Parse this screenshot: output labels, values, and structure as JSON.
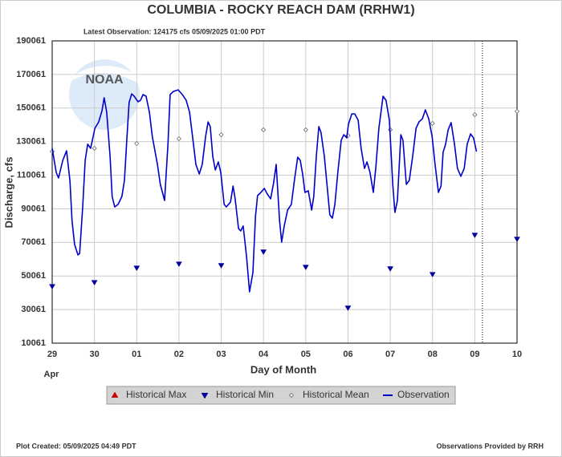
{
  "chart_data": {
    "type": "line",
    "title": "COLUMBIA - ROCKY REACH DAM  (RRHW1)",
    "subtitle": "Latest Observation: 124175 cfs 05/09/2025 01:00 PDT",
    "y_label": "Discharge, cfs",
    "x_label": "Day of Month",
    "month_label": "Apr",
    "watermark": "NOAA",
    "footer_left": "Plot Created: 05/09/2025 04:49 PDT",
    "footer_right": "Observations Provided by RRH",
    "xlim": [
      0,
      11
    ],
    "xticks": [
      {
        "value": 0,
        "label": "29"
      },
      {
        "value": 1,
        "label": "30"
      },
      {
        "value": 2,
        "label": "01"
      },
      {
        "value": 3,
        "label": "02"
      },
      {
        "value": 4,
        "label": "03"
      },
      {
        "value": 5,
        "label": "04"
      },
      {
        "value": 6,
        "label": "05"
      },
      {
        "value": 7,
        "label": "06"
      },
      {
        "value": 8,
        "label": "07"
      },
      {
        "value": 9,
        "label": "08"
      },
      {
        "value": 10,
        "label": "09"
      },
      {
        "value": 11,
        "label": "10"
      }
    ],
    "ylim": [
      10061,
      190061
    ],
    "yticks": [
      10061,
      30061,
      50061,
      70061,
      90061,
      110061,
      130061,
      150061,
      170061,
      190061
    ],
    "grid": true,
    "legend": "bottom",
    "now_x": 10.18,
    "series": [
      {
        "name": "Historical Max",
        "color": "#cc0000",
        "marker": "triangle-up",
        "x": [],
        "values": []
      },
      {
        "name": "Historical Min",
        "color": "#00009c",
        "marker": "triangle-down",
        "x": [
          0,
          1,
          2,
          3,
          4,
          5,
          6,
          7,
          8,
          9,
          10,
          11
        ],
        "values": [
          43900,
          46300,
          54900,
          57300,
          56400,
          64500,
          55400,
          31100,
          54500,
          51100,
          74500,
          72100
        ]
      },
      {
        "name": "Historical Mean",
        "color": "#666666",
        "marker": "diamond",
        "x": [
          0,
          1,
          2,
          3,
          4,
          5,
          6,
          7,
          8,
          9,
          10,
          11
        ],
        "values": [
          124200,
          126100,
          128900,
          131800,
          134200,
          137100,
          137100,
          133700,
          137100,
          140900,
          146100,
          148100
        ]
      },
      {
        "name": "Observation",
        "color": "#0000cc",
        "marker": "line",
        "x": [
          0,
          0.095,
          0.15,
          0.25,
          0.34,
          0.42,
          0.47,
          0.53,
          0.61,
          0.65,
          0.72,
          0.78,
          0.84,
          0.91,
          1.01,
          1.1,
          1.18,
          1.23,
          1.29,
          1.37,
          1.42,
          1.48,
          1.56,
          1.65,
          1.71,
          1.77,
          1.82,
          1.88,
          1.94,
          2.03,
          2.09,
          2.15,
          2.22,
          2.3,
          2.37,
          2.49,
          2.56,
          2.66,
          2.74,
          2.79,
          2.87,
          2.98,
          3.08,
          3.17,
          3.25,
          3.32,
          3.4,
          3.48,
          3.55,
          3.63,
          3.69,
          3.74,
          3.8,
          3.86,
          3.93,
          3.99,
          4.07,
          4.12,
          4.22,
          4.28,
          4.33,
          4.41,
          4.46,
          4.52,
          4.6,
          4.67,
          4.75,
          4.81,
          4.86,
          4.94,
          5.02,
          5.09,
          5.17,
          5.24,
          5.3,
          5.38,
          5.43,
          5.49,
          5.57,
          5.66,
          5.74,
          5.81,
          5.87,
          5.93,
          5.98,
          6.06,
          6.14,
          6.19,
          6.25,
          6.31,
          6.36,
          6.44,
          6.52,
          6.57,
          6.63,
          6.69,
          6.76,
          6.84,
          6.9,
          6.97,
          7.01,
          7.09,
          7.16,
          7.24,
          7.31,
          7.39,
          7.45,
          7.52,
          7.6,
          7.66,
          7.73,
          7.83,
          7.9,
          7.98,
          8.06,
          8.11,
          8.17,
          8.25,
          8.3,
          8.38,
          8.45,
          8.53,
          8.61,
          8.68,
          8.76,
          8.83,
          8.91,
          8.99,
          9.06,
          9.14,
          9.2,
          9.25,
          9.31,
          9.37,
          9.44,
          9.52,
          9.59,
          9.67,
          9.75,
          9.82,
          9.9,
          9.97,
          10.04
        ],
        "values": [
          126100,
          111800,
          108400,
          118900,
          124600,
          107000,
          83100,
          68800,
          62600,
          63500,
          90300,
          118900,
          128500,
          126100,
          138000,
          141800,
          148500,
          156200,
          147600,
          121300,
          97400,
          91200,
          92700,
          97400,
          107000,
          133200,
          153300,
          158500,
          157100,
          153800,
          154700,
          158100,
          157100,
          147600,
          133200,
          116500,
          104600,
          95000,
          128500,
          158100,
          160000,
          160900,
          158100,
          154700,
          147600,
          133200,
          116500,
          110800,
          116500,
          133200,
          141800,
          139000,
          121300,
          113200,
          118000,
          111800,
          92700,
          91200,
          94100,
          103600,
          96000,
          78300,
          76900,
          79800,
          61600,
          40600,
          52100,
          85500,
          97900,
          99800,
          102200,
          98900,
          96000,
          105500,
          116500,
          83100,
          70200,
          79800,
          89300,
          92700,
          108400,
          120800,
          118900,
          110300,
          99800,
          100800,
          89300,
          97400,
          121300,
          139000,
          135600,
          121300,
          99800,
          86500,
          84500,
          92700,
          111800,
          130900,
          134200,
          132300,
          140400,
          146600,
          146600,
          142800,
          126100,
          114100,
          118000,
          111800,
          99800,
          115100,
          138000,
          157100,
          154700,
          142800,
          104600,
          87900,
          95000,
          134200,
          130900,
          104600,
          107000,
          121300,
          138000,
          141800,
          143700,
          149000,
          143700,
          133200,
          116500,
          99800,
          103600,
          123700,
          128500,
          137100,
          141400,
          128500,
          114100,
          109400,
          114100,
          128500,
          134700,
          132300,
          124175
        ]
      }
    ]
  }
}
